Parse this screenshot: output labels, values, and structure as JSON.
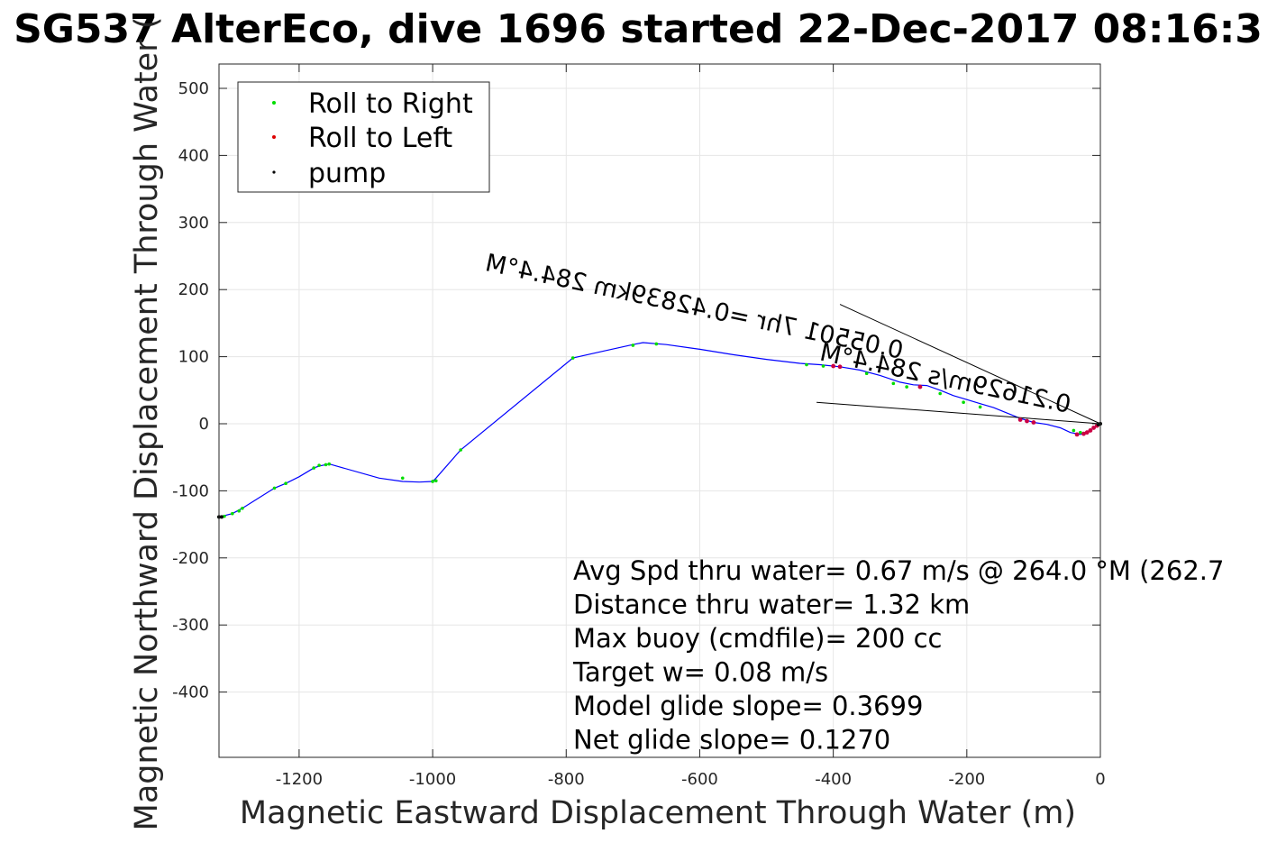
{
  "chart_data": {
    "type": "scatter",
    "title": "SG537 AlterEco, dive 1696 started 22-Dec-2017 08:16:3",
    "xlabel": "Magnetic Eastward Displacement Through Water (m)",
    "ylabel": "Magnetic Northward Displacement Through Water (",
    "xlim": [
      -1320,
      0
    ],
    "ylim": [
      -500,
      540
    ],
    "xticks": [
      -1200,
      -1000,
      -800,
      -600,
      -400,
      -200,
      0
    ],
    "yticks": [
      500,
      400,
      300,
      200,
      100,
      0,
      -100,
      -200,
      -300,
      -400
    ],
    "grid": true,
    "legend_position": "top-left",
    "legend": [
      {
        "label": "Roll to Right",
        "color": "#00dd00"
      },
      {
        "label": "Roll to Left",
        "color": "#dd0000"
      },
      {
        "label": "pump",
        "color": "#000000"
      }
    ],
    "track": {
      "color": "#0000ff",
      "x": [
        0,
        -5,
        -15,
        -30,
        -45,
        -60,
        -80,
        -100,
        -120,
        -140,
        -160,
        -180,
        -200,
        -220,
        -240,
        -260,
        -280,
        -300,
        -330,
        -360,
        -390,
        -420,
        -450,
        -500,
        -550,
        -600,
        -650,
        -685,
        -700,
        -745,
        -790,
        -958,
        -995,
        -1000,
        -1020,
        -1045,
        -1080,
        -1155,
        -1170,
        -1178,
        -1200,
        -1220,
        -1237,
        -1285,
        -1300,
        -1320
      ],
      "y": [
        0,
        -3,
        -10,
        -16,
        -13,
        -6,
        -1,
        2,
        8,
        16,
        24,
        30,
        36,
        42,
        50,
        57,
        58,
        62,
        72,
        80,
        85,
        88,
        90,
        96,
        103,
        111,
        118,
        121,
        118,
        108,
        98,
        -39,
        -81,
        -86,
        -87,
        -86,
        -81,
        -60,
        -63,
        -66,
        -79,
        -89,
        -96,
        -126,
        -134,
        -139
      ]
    },
    "roll_right": {
      "x": [
        -1320,
        -1312,
        -1300,
        -1290,
        -1285,
        -1237,
        -1220,
        -1178,
        -1170,
        -1160,
        -1155,
        -1045,
        -1000,
        -995,
        -958,
        -790,
        -700,
        -665,
        -440,
        -415,
        -350,
        -310,
        -290,
        -240,
        -205,
        -180,
        -40,
        -30
      ],
      "y": [
        -139,
        -138,
        -134,
        -130,
        -126,
        -96,
        -89,
        -66,
        -62,
        -61,
        -60,
        -81,
        -86,
        -85,
        -39,
        98,
        117,
        119,
        88,
        86,
        75,
        60,
        55,
        45,
        32,
        25,
        -10,
        -13
      ]
    },
    "roll_left": {
      "x": [
        -5,
        -10,
        -15,
        -20,
        -25,
        -35,
        -100,
        -110,
        -120,
        -270,
        -390,
        -400
      ],
      "y": [
        -3,
        -6,
        -10,
        -13,
        -15,
        -16,
        2,
        4,
        6,
        55,
        85,
        86
      ]
    },
    "pump": {
      "x": [
        0,
        -3,
        -1320,
        -1316
      ],
      "y": [
        0,
        -1,
        -139,
        -139
      ]
    },
    "heading_lines": [
      {
        "x": [
          0,
          -390
        ],
        "y": [
          0,
          178
        ]
      },
      {
        "x": [
          0,
          -425
        ],
        "y": [
          0,
          32
        ]
      }
    ],
    "current_labels": [
      "0.21629m/s 284.4°M",
      "0.05501 7hr =0.42839km 284.4°M"
    ],
    "annotations": [
      "Avg Spd thru water=  0.67 m/s @ 264.0 °M (262.7",
      "Distance thru water=  1.32 km",
      "Max buoy (cmdfile)= 200 cc",
      "Target w= 0.08 m/s",
      "Model glide slope= 0.3699",
      "Net glide slope= 0.1270"
    ]
  }
}
